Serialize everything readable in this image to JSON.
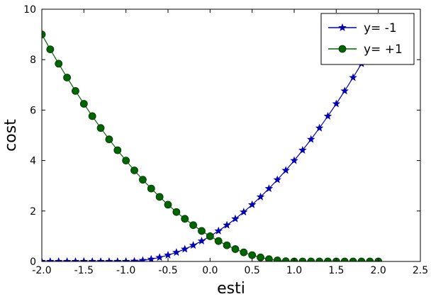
{
  "chart_data": {
    "type": "line",
    "title": "",
    "xlabel": "esti",
    "ylabel": "cost",
    "xlim": [
      -2.0,
      2.5
    ],
    "ylim": [
      0,
      10
    ],
    "xticks": [
      "-2.0",
      "-1.5",
      "-1.0",
      "-0.5",
      "0.0",
      "0.5",
      "1.0",
      "1.5",
      "2.0",
      "2.5"
    ],
    "yticks": [
      "0",
      "2",
      "4",
      "6",
      "8",
      "10"
    ],
    "grid": false,
    "legend_position": "top-right",
    "series": [
      {
        "name": "y= -1",
        "color": "#0000b0",
        "marker": "star",
        "x": [
          -2.0,
          -1.9,
          -1.8,
          -1.7,
          -1.6,
          -1.5,
          -1.4,
          -1.3,
          -1.2,
          -1.1,
          -1.0,
          -0.9,
          -0.8,
          -0.7,
          -0.6,
          -0.5,
          -0.4,
          -0.3,
          -0.2,
          -0.1,
          0.0,
          0.1,
          0.2,
          0.3,
          0.4,
          0.5,
          0.6,
          0.7,
          0.8,
          0.9,
          1.0,
          1.1,
          1.2,
          1.3,
          1.4,
          1.5,
          1.6,
          1.7,
          1.8,
          1.9,
          2.0
        ],
        "y": [
          0,
          0,
          0,
          0,
          0,
          0,
          0,
          0,
          0,
          0,
          0,
          0.01,
          0.04,
          0.09,
          0.16,
          0.25,
          0.36,
          0.49,
          0.64,
          0.81,
          1.0,
          1.21,
          1.44,
          1.69,
          1.96,
          2.25,
          2.56,
          2.89,
          3.24,
          3.61,
          4.0,
          4.41,
          4.84,
          5.29,
          5.76,
          6.25,
          6.76,
          7.29,
          7.84,
          8.41,
          9.0
        ]
      },
      {
        "name": "y= +1",
        "color": "#006400",
        "marker": "circle",
        "x": [
          -2.0,
          -1.9,
          -1.8,
          -1.7,
          -1.6,
          -1.5,
          -1.4,
          -1.3,
          -1.2,
          -1.1,
          -1.0,
          -0.9,
          -0.8,
          -0.7,
          -0.6,
          -0.5,
          -0.4,
          -0.3,
          -0.2,
          -0.1,
          0.0,
          0.1,
          0.2,
          0.3,
          0.4,
          0.5,
          0.6,
          0.7,
          0.8,
          0.9,
          1.0,
          1.1,
          1.2,
          1.3,
          1.4,
          1.5,
          1.6,
          1.7,
          1.8,
          1.9,
          2.0
        ],
        "y": [
          9.0,
          8.41,
          7.84,
          7.29,
          6.76,
          6.25,
          5.76,
          5.29,
          4.84,
          4.41,
          4.0,
          3.61,
          3.24,
          2.89,
          2.56,
          2.25,
          1.96,
          1.69,
          1.44,
          1.21,
          1.0,
          0.81,
          0.64,
          0.49,
          0.36,
          0.25,
          0.16,
          0.09,
          0.04,
          0.01,
          0,
          0,
          0,
          0,
          0,
          0,
          0,
          0,
          0,
          0,
          0
        ]
      }
    ]
  }
}
